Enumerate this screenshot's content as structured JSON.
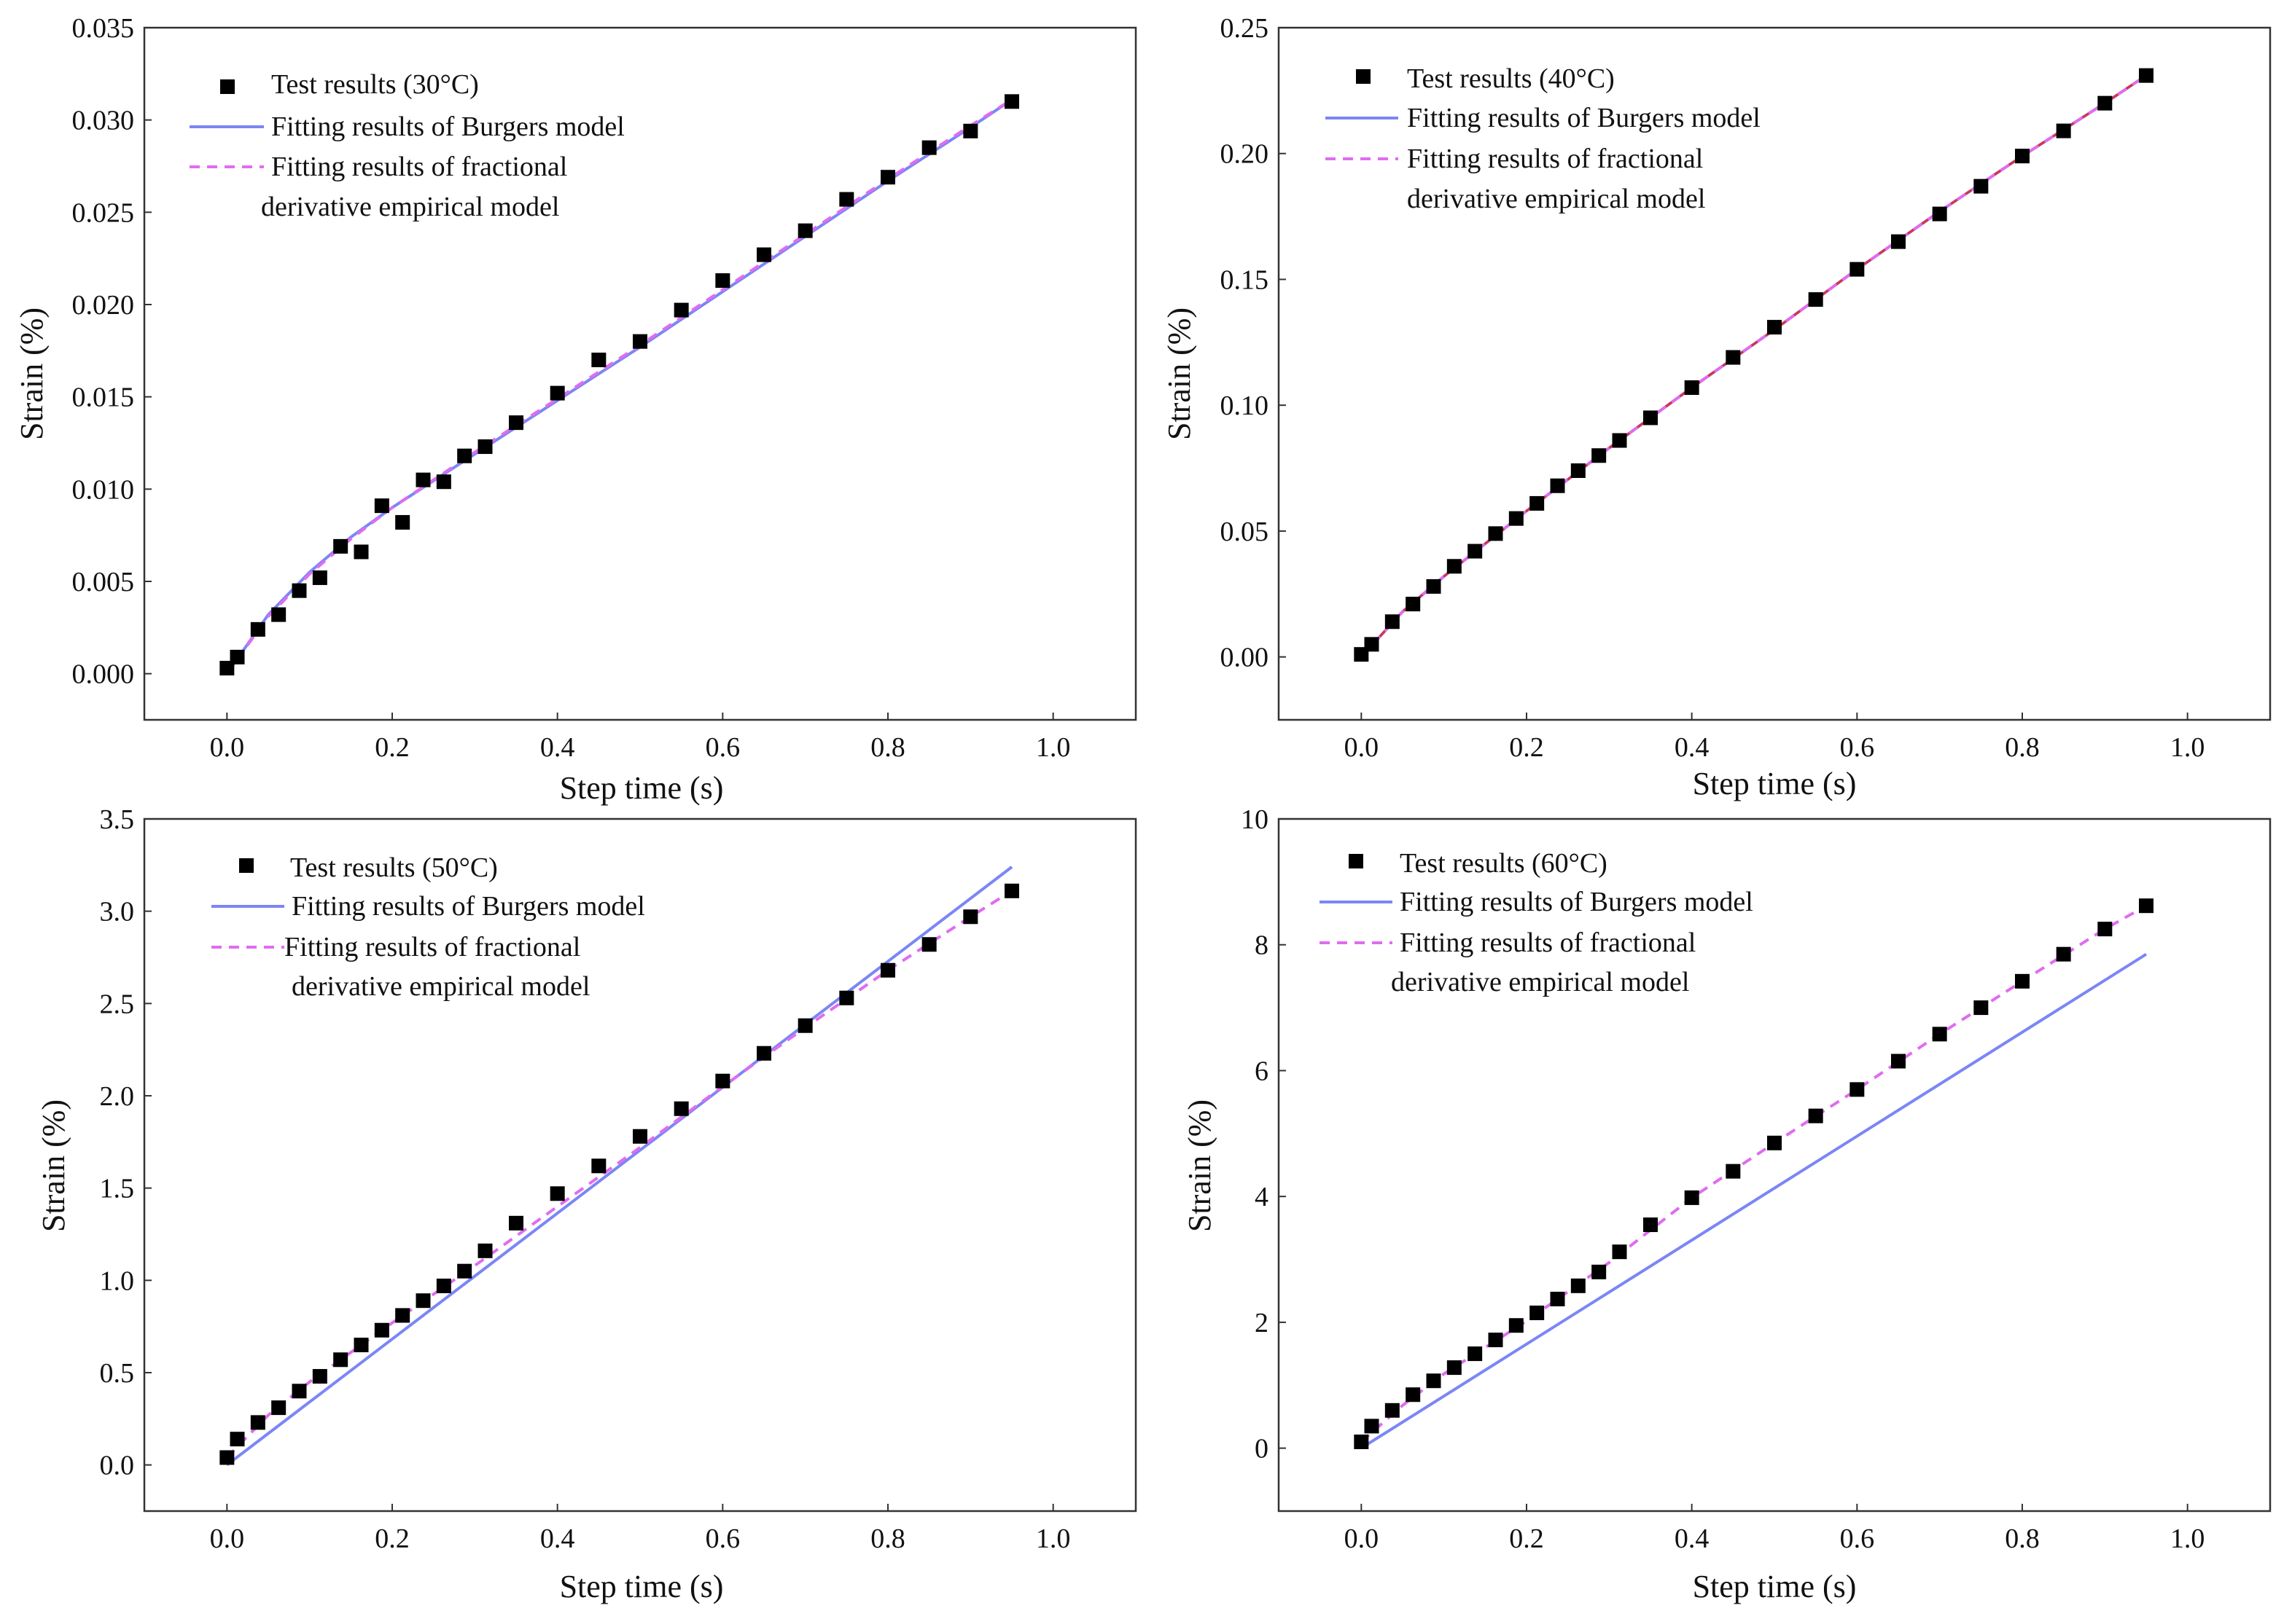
{
  "figure": {
    "background": "#ffffff"
  },
  "colors": {
    "burgers": "#7b86f5",
    "fractional": "#e06cf0",
    "marker": "#000000",
    "axis": "#333333",
    "red": "#e0303a"
  },
  "chart_data": [
    {
      "id": "panel-30c",
      "type": "line",
      "title": "",
      "xlabel": "Step time (s)",
      "ylabel": "Strain (%)",
      "xlim": [
        -0.1,
        1.1
      ],
      "ylim": [
        -0.0025,
        0.035
      ],
      "xticks": [
        0.0,
        0.2,
        0.4,
        0.6,
        0.8,
        1.0
      ],
      "xtick_labels": [
        "0.0",
        "0.2",
        "0.4",
        "0.6",
        "0.8",
        "1.0"
      ],
      "yticks": [
        0.0,
        0.005,
        0.01,
        0.015,
        0.02,
        0.025,
        0.03,
        0.035
      ],
      "ytick_labels": [
        "0.000",
        "0.005",
        "0.010",
        "0.015",
        "0.020",
        "0.025",
        "0.030",
        "0.035"
      ],
      "legend_position": "top-left",
      "legend": {
        "test": "Test results (30°C)",
        "burgers": "Fitting results of Burgers model",
        "fractional_line1": "Fitting results of fractional",
        "fractional_line2": "derivative empirical model"
      },
      "series": [
        {
          "name": "Test results (30°C)",
          "kind": "scatter",
          "x": [
            0.0,
            0.0125,
            0.0375,
            0.0625,
            0.0875,
            0.1125,
            0.1375,
            0.1625,
            0.1875,
            0.2125,
            0.2375,
            0.2625,
            0.2875,
            0.3125,
            0.35,
            0.4,
            0.45,
            0.5,
            0.55,
            0.6,
            0.65,
            0.7,
            0.75,
            0.8,
            0.85,
            0.9,
            0.95
          ],
          "y": [
            0.0003,
            0.0009,
            0.0024,
            0.0032,
            0.0045,
            0.0052,
            0.0069,
            0.0066,
            0.0091,
            0.0082,
            0.0105,
            0.0104,
            0.0118,
            0.0123,
            0.0136,
            0.0152,
            0.017,
            0.018,
            0.0197,
            0.0213,
            0.0227,
            0.024,
            0.0257,
            0.0269,
            0.0285,
            0.0294,
            0.031
          ]
        },
        {
          "name": "Fitting results of Burgers model",
          "kind": "line",
          "style": "solid",
          "x": [
            0.0,
            0.05,
            0.1,
            0.15,
            0.2,
            0.3,
            0.4,
            0.5,
            0.6,
            0.7,
            0.8,
            0.9,
            0.95
          ],
          "y": [
            0.0,
            0.0032,
            0.0055,
            0.0074,
            0.009,
            0.0119,
            0.0148,
            0.0177,
            0.0207,
            0.0237,
            0.0267,
            0.0296,
            0.0311
          ]
        },
        {
          "name": "Fitting results of fractional derivative empirical model",
          "kind": "line",
          "style": "dashed",
          "x": [
            0.0,
            0.05,
            0.1,
            0.15,
            0.2,
            0.3,
            0.4,
            0.5,
            0.6,
            0.7,
            0.8,
            0.9,
            0.95
          ],
          "y": [
            0.0,
            0.0031,
            0.0054,
            0.0073,
            0.009,
            0.012,
            0.0149,
            0.0178,
            0.0208,
            0.0238,
            0.0268,
            0.0297,
            0.0311
          ]
        }
      ]
    },
    {
      "id": "panel-40c",
      "type": "line",
      "title": "",
      "xlabel": "Step time (s)",
      "ylabel": "Strain (%)",
      "xlim": [
        -0.1,
        1.1
      ],
      "ylim": [
        -0.025,
        0.25
      ],
      "xticks": [
        0.0,
        0.2,
        0.4,
        0.6,
        0.8,
        1.0
      ],
      "xtick_labels": [
        "0.0",
        "0.2",
        "0.4",
        "0.6",
        "0.8",
        "1.0"
      ],
      "yticks": [
        0.0,
        0.05,
        0.1,
        0.15,
        0.2,
        0.25
      ],
      "ytick_labels": [
        "0.00",
        "0.05",
        "0.10",
        "0.15",
        "0.20",
        "0.25"
      ],
      "legend_position": "top-left",
      "legend": {
        "test": "Test results (40°C)",
        "burgers": "Fitting results of Burgers model",
        "fractional_line1": "Fitting results of fractional",
        "fractional_line2": "derivative empirical model"
      },
      "series": [
        {
          "name": "Test results (40°C)",
          "kind": "scatter",
          "x": [
            0.0,
            0.0125,
            0.0375,
            0.0625,
            0.0875,
            0.1125,
            0.1375,
            0.1625,
            0.1875,
            0.2125,
            0.2375,
            0.2625,
            0.2875,
            0.3125,
            0.35,
            0.4,
            0.45,
            0.5,
            0.55,
            0.6,
            0.65,
            0.7,
            0.75,
            0.8,
            0.85,
            0.9,
            0.95
          ],
          "y": [
            0.001,
            0.005,
            0.014,
            0.021,
            0.028,
            0.036,
            0.042,
            0.049,
            0.055,
            0.061,
            0.068,
            0.074,
            0.08,
            0.086,
            0.095,
            0.107,
            0.119,
            0.131,
            0.142,
            0.154,
            0.165,
            0.176,
            0.187,
            0.199,
            0.209,
            0.22,
            0.231
          ]
        },
        {
          "name": "Fitting results of Burgers model",
          "kind": "line",
          "style": "solid",
          "x": [
            0.0,
            0.05,
            0.1,
            0.2,
            0.3,
            0.4,
            0.5,
            0.6,
            0.7,
            0.8,
            0.9,
            0.95
          ],
          "y": [
            0.0,
            0.018,
            0.032,
            0.058,
            0.083,
            0.107,
            0.13,
            0.154,
            0.177,
            0.199,
            0.22,
            0.231
          ]
        },
        {
          "name": "Fitting results of fractional derivative empirical model",
          "kind": "line",
          "style": "dashed",
          "x": [
            0.0,
            0.05,
            0.1,
            0.2,
            0.3,
            0.4,
            0.5,
            0.6,
            0.7,
            0.8,
            0.9,
            0.95
          ],
          "y": [
            0.0,
            0.018,
            0.032,
            0.058,
            0.083,
            0.107,
            0.13,
            0.154,
            0.177,
            0.199,
            0.22,
            0.231
          ]
        }
      ]
    },
    {
      "id": "panel-50c",
      "type": "line",
      "title": "",
      "xlabel": "Step time (s)",
      "ylabel": "Strain (%)",
      "xlim": [
        -0.1,
        1.1
      ],
      "ylim": [
        -0.25,
        3.5
      ],
      "xticks": [
        0.0,
        0.2,
        0.4,
        0.6,
        0.8,
        1.0
      ],
      "xtick_labels": [
        "0.0",
        "0.2",
        "0.4",
        "0.6",
        "0.8",
        "1.0"
      ],
      "yticks": [
        0.0,
        0.5,
        1.0,
        1.5,
        2.0,
        2.5,
        3.0,
        3.5
      ],
      "ytick_labels": [
        "0.0",
        "0.5",
        "1.0",
        "1.5",
        "2.0",
        "2.5",
        "3.0",
        "3.5"
      ],
      "legend_position": "top-left",
      "legend": {
        "test": "Test results (50°C)",
        "burgers": "Fitting results of Burgers model",
        "fractional_line1": "Fitting results of fractional",
        "fractional_line2": "derivative empirical model"
      },
      "series": [
        {
          "name": "Test results (50°C)",
          "kind": "scatter",
          "x": [
            0.0,
            0.0125,
            0.0375,
            0.0625,
            0.0875,
            0.1125,
            0.1375,
            0.1625,
            0.1875,
            0.2125,
            0.2375,
            0.2625,
            0.2875,
            0.3125,
            0.35,
            0.4,
            0.45,
            0.5,
            0.55,
            0.6,
            0.65,
            0.7,
            0.75,
            0.8,
            0.85,
            0.9,
            0.95
          ],
          "y": [
            0.04,
            0.14,
            0.23,
            0.31,
            0.4,
            0.48,
            0.57,
            0.65,
            0.73,
            0.81,
            0.89,
            0.97,
            1.05,
            1.16,
            1.31,
            1.47,
            1.62,
            1.78,
            1.93,
            2.08,
            2.23,
            2.38,
            2.53,
            2.68,
            2.82,
            2.97,
            3.11
          ]
        },
        {
          "name": "Fitting results of Burgers model",
          "kind": "line",
          "style": "solid",
          "x": [
            0.0,
            0.95
          ],
          "y": [
            0.0,
            3.24
          ]
        },
        {
          "name": "Fitting results of fractional derivative empirical model",
          "kind": "line",
          "style": "dashed",
          "x": [
            0.0,
            0.05,
            0.1,
            0.2,
            0.3,
            0.4,
            0.5,
            0.6,
            0.7,
            0.8,
            0.9,
            0.95
          ],
          "y": [
            0.04,
            0.27,
            0.45,
            0.77,
            1.08,
            1.4,
            1.72,
            2.05,
            2.37,
            2.68,
            2.97,
            3.11
          ]
        }
      ]
    },
    {
      "id": "panel-60c",
      "type": "line",
      "title": "",
      "xlabel": "Step time (s)",
      "ylabel": "Strain (%)",
      "xlim": [
        -0.1,
        1.1
      ],
      "ylim": [
        -1.0,
        10.0
      ],
      "xticks": [
        0.0,
        0.2,
        0.4,
        0.6,
        0.8,
        1.0
      ],
      "xtick_labels": [
        "0.0",
        "0.2",
        "0.4",
        "0.6",
        "0.8",
        "1.0"
      ],
      "yticks": [
        0,
        2,
        4,
        6,
        8,
        10
      ],
      "ytick_labels": [
        "0",
        "2",
        "4",
        "6",
        "8",
        "10"
      ],
      "legend_position": "top-left",
      "legend": {
        "test": "Test results (60°C)",
        "burgers": "Fitting results of Burgers model",
        "fractional_line1": "Fitting results of fractional",
        "fractional_line2": "derivative empirical model"
      },
      "series": [
        {
          "name": "Test results (60°C)",
          "kind": "scatter",
          "x": [
            0.0,
            0.0125,
            0.0375,
            0.0625,
            0.0875,
            0.1125,
            0.1375,
            0.1625,
            0.1875,
            0.2125,
            0.2375,
            0.2625,
            0.2875,
            0.3125,
            0.35,
            0.4,
            0.45,
            0.5,
            0.55,
            0.6,
            0.65,
            0.7,
            0.75,
            0.8,
            0.85,
            0.9,
            0.95
          ],
          "y": [
            0.1,
            0.35,
            0.6,
            0.85,
            1.07,
            1.28,
            1.5,
            1.72,
            1.95,
            2.15,
            2.37,
            2.58,
            2.8,
            3.12,
            3.55,
            3.98,
            4.4,
            4.85,
            5.28,
            5.7,
            6.15,
            6.58,
            7.0,
            7.42,
            7.85,
            8.25,
            8.62
          ]
        },
        {
          "name": "Fitting results of Burgers model",
          "kind": "line",
          "style": "solid",
          "x": [
            0.0,
            0.95
          ],
          "y": [
            0.0,
            7.85
          ]
        },
        {
          "name": "Fitting results of fractional derivative empirical model",
          "kind": "line",
          "style": "dashed",
          "x": [
            0.0,
            0.05,
            0.1,
            0.2,
            0.3,
            0.4,
            0.5,
            0.6,
            0.7,
            0.8,
            0.9,
            0.95
          ],
          "y": [
            0.1,
            0.68,
            1.18,
            2.02,
            2.95,
            3.98,
            4.85,
            5.7,
            6.58,
            7.42,
            8.25,
            8.62
          ]
        }
      ]
    }
  ]
}
